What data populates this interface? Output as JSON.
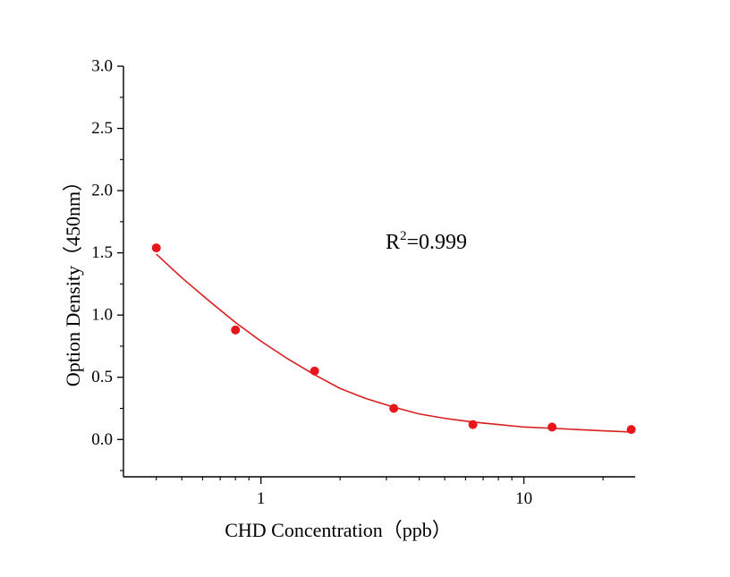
{
  "chart_data": {
    "type": "scatter",
    "title": "",
    "xlabel": "CHD  Concentration（ppb）",
    "ylabel": "Option Density（450nm）",
    "xscale": "log",
    "xlim": [
      0.3,
      26.5
    ],
    "ylim": [
      -0.3,
      3.0
    ],
    "yticks": [
      "3.0",
      "2.5",
      "2.0",
      "1.5",
      "1.0",
      "0.5",
      "0.0"
    ],
    "xticks": [
      "1",
      "10"
    ],
    "grid": false,
    "legend": "none",
    "series": [
      {
        "x": [
          0.4,
          0.8,
          1.6,
          3.2,
          6.4,
          12.8,
          25.6
        ],
        "y": [
          1.54,
          0.88,
          0.55,
          0.25,
          0.12,
          0.1,
          0.08
        ],
        "marker_color": "#e8161c"
      }
    ],
    "fit": {
      "type": "curve",
      "color": "#d81e1e",
      "x": [
        0.4,
        0.5,
        0.63,
        0.8,
        1.0,
        1.26,
        1.6,
        2.0,
        2.5,
        3.2,
        4.0,
        5.0,
        6.4,
        8.0,
        10.0,
        12.8,
        16.0,
        20.0,
        25.6
      ],
      "y": [
        1.49,
        1.3,
        1.12,
        0.94,
        0.79,
        0.65,
        0.52,
        0.41,
        0.33,
        0.26,
        0.205,
        0.17,
        0.14,
        0.12,
        0.1,
        0.09,
        0.08,
        0.07,
        0.06
      ]
    },
    "annotation": {
      "base": "R",
      "sup": "2",
      "rest": "=0.999"
    }
  }
}
